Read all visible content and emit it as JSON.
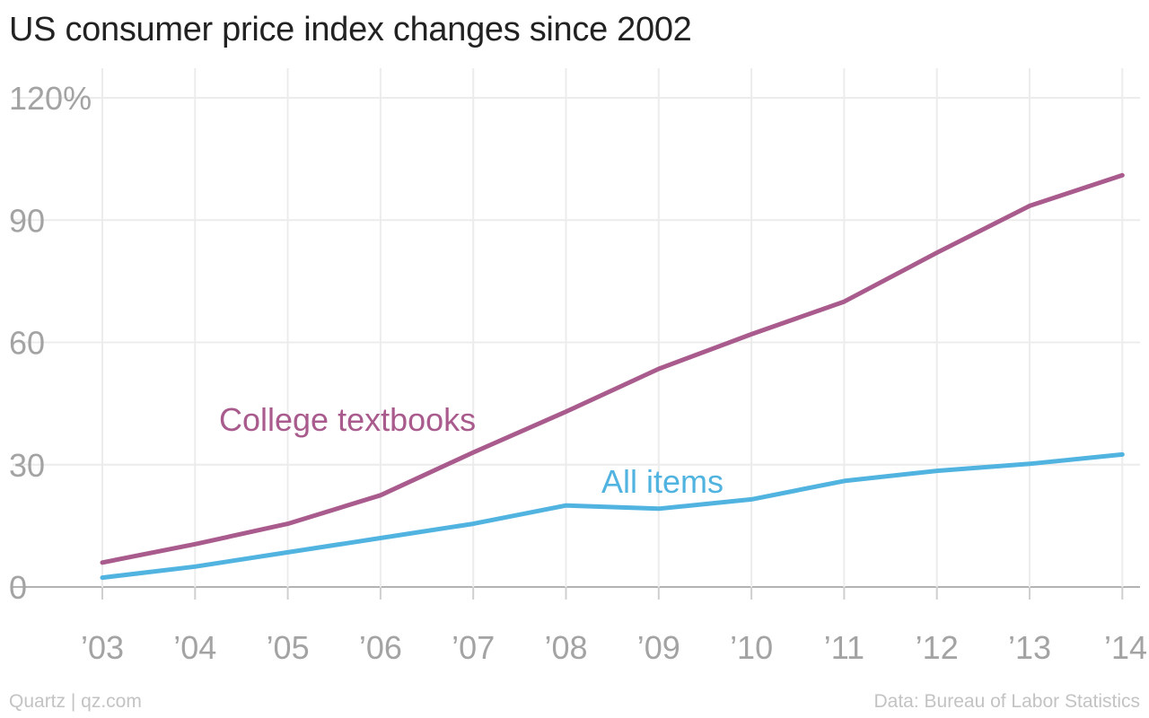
{
  "header": {
    "title": "US consumer price index changes since 2002"
  },
  "footer": {
    "source_left": "Quartz | qz.com",
    "source_right": "Data: Bureau of Labor Statistics"
  },
  "colors": {
    "textbooks": "#a85b8c",
    "all_items": "#51b3e0",
    "gridline": "#ececec",
    "axis_label": "#a3a3a3"
  },
  "chart_data": {
    "type": "line",
    "title": "US consumer price index changes since 2002",
    "x": [
      "’03",
      "’04",
      "’05",
      "’06",
      "’07",
      "’08",
      "’09",
      "’10",
      "’11",
      "’12",
      "’13",
      "’14"
    ],
    "series": [
      {
        "name": "College textbooks",
        "values": [
          6,
          10.5,
          15.5,
          22.5,
          33,
          43,
          53.5,
          62,
          70,
          82,
          93.5,
          101
        ]
      },
      {
        "name": "All items",
        "values": [
          2.3,
          5,
          8.5,
          12,
          15.5,
          20,
          19.2,
          21.5,
          26,
          28.5,
          30.2,
          32.5
        ]
      }
    ],
    "ylim": [
      0,
      120
    ],
    "yticks": [
      0,
      30,
      60,
      90,
      120
    ],
    "ytick_labels": [
      "0",
      "30",
      "60",
      "90",
      "120%"
    ],
    "grid": true,
    "legend": "inline labels"
  }
}
